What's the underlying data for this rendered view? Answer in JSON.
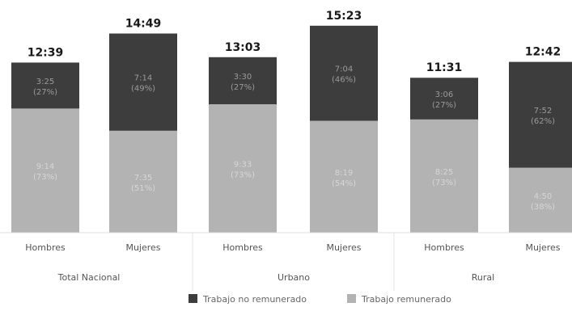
{
  "chart_data": {
    "type": "bar",
    "stacked": true,
    "unit": "hours:minutes",
    "categories": [
      "Hombres",
      "Mujeres",
      "Hombres",
      "Mujeres",
      "Hombres",
      "Mujeres"
    ],
    "groups": [
      {
        "label": "Total Nacional",
        "members": [
          0,
          1
        ]
      },
      {
        "label": "Urbano",
        "members": [
          2,
          3
        ]
      },
      {
        "label": "Rural",
        "members": [
          4,
          5
        ]
      }
    ],
    "totals": [
      "12:39",
      "14:49",
      "13:03",
      "15:23",
      "11:31",
      "12:42"
    ],
    "totals_hours": [
      12.65,
      14.82,
      13.05,
      15.38,
      11.52,
      12.7
    ],
    "series": [
      {
        "name": "Trabajo remunerado",
        "color": "#b3b3b3",
        "values_hours": [
          9.23,
          7.58,
          9.55,
          8.32,
          8.42,
          4.83
        ],
        "labels": [
          "9:14",
          "7:35",
          "9:33",
          "8:19",
          "8:25",
          "4:50"
        ],
        "percent_labels": [
          "(73%)",
          "(51%)",
          "(73%)",
          "(54%)",
          "(73%)",
          "(38%)"
        ]
      },
      {
        "name": "Trabajo no remunerado",
        "color": "#3d3d3d",
        "values_hours": [
          3.42,
          7.23,
          3.5,
          7.07,
          3.1,
          7.87
        ],
        "labels": [
          "3:25",
          "7:14",
          "3:30",
          "7:04",
          "3:06",
          "7:52"
        ],
        "percent_labels": [
          "(27%)",
          "(49%)",
          "(27%)",
          "(46%)",
          "(27%)",
          "(62%)"
        ]
      }
    ],
    "ylim": [
      0,
      15.38
    ],
    "grid": false,
    "legend": {
      "placement": "bottom",
      "entries": [
        "Trabajo no remunerado",
        "Trabajo remunerado"
      ]
    }
  }
}
